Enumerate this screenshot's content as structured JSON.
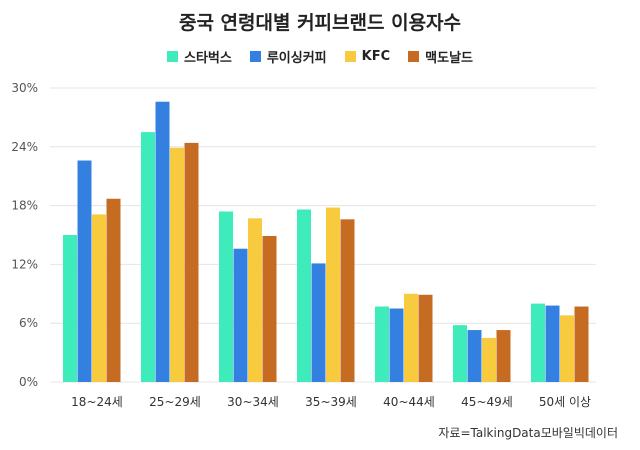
{
  "chart_data": {
    "type": "bar",
    "title": "중국 연령대별 커피브랜드 이용자수",
    "categories": [
      "18~24세",
      "25~29세",
      "30~34세",
      "35~39세",
      "40~44세",
      "45~49세",
      "50세 이상"
    ],
    "series": [
      {
        "name": "스타벅스",
        "color": "#3EEBBA",
        "values": [
          15.0,
          25.5,
          17.4,
          17.6,
          7.7,
          5.8,
          8.0
        ]
      },
      {
        "name": "루이싱커피",
        "color": "#3380E0",
        "values": [
          22.6,
          28.6,
          13.6,
          12.1,
          7.5,
          5.3,
          7.8
        ]
      },
      {
        "name": "KFC",
        "color": "#F8CA3E",
        "values": [
          17.1,
          23.9,
          16.7,
          17.8,
          9.0,
          4.5,
          6.8
        ]
      },
      {
        "name": "맥도날드",
        "color": "#C56B22",
        "values": [
          18.7,
          24.4,
          14.9,
          16.6,
          8.9,
          5.3,
          7.7
        ]
      }
    ],
    "yticks": [
      "0%",
      "6%",
      "12%",
      "18%",
      "24%",
      "30%"
    ],
    "ylim": [
      0,
      30
    ],
    "grid": true,
    "legend": "top-center",
    "xlabel": "",
    "ylabel": ""
  },
  "source": "자료=TalkingData모바일빅데이터"
}
